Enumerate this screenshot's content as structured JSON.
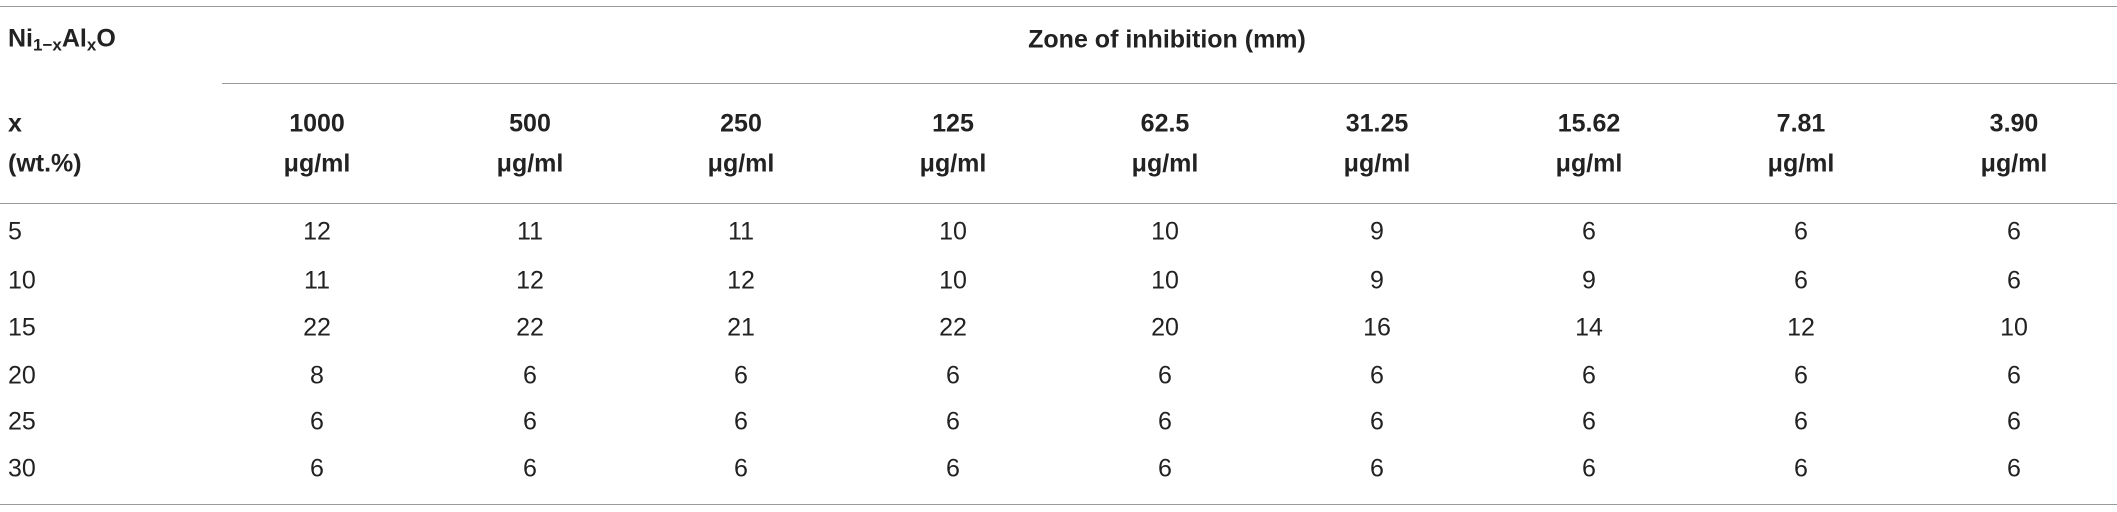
{
  "table": {
    "corner": {
      "compound": [
        "Ni",
        "1−x",
        "Al",
        "x",
        "O"
      ],
      "row_label": [
        "x",
        "(wt.%)"
      ]
    },
    "group_header": "Zone of inhibition (mm)",
    "columns": [
      [
        "1000",
        "μg/ml"
      ],
      [
        "500",
        "μg/ml"
      ],
      [
        "250",
        "μg/ml"
      ],
      [
        "125",
        "μg/ml"
      ],
      [
        "62.5",
        "μg/ml"
      ],
      [
        "31.25",
        "μg/ml"
      ],
      [
        "15.62",
        "μg/ml"
      ],
      [
        "7.81",
        "μg/ml"
      ],
      [
        "3.90",
        "μg/ml"
      ]
    ],
    "rows": [
      [
        "5",
        "12",
        "11",
        "11",
        "10",
        "10",
        "9",
        "6",
        "6",
        "6"
      ],
      [
        "10",
        "11",
        "12",
        "12",
        "10",
        "10",
        "9",
        "9",
        "6",
        "6"
      ],
      [
        "15",
        "22",
        "22",
        "21",
        "22",
        "20",
        "16",
        "14",
        "12",
        "10"
      ],
      [
        "20",
        "8",
        "6",
        "6",
        "6",
        "6",
        "6",
        "6",
        "6",
        "6"
      ],
      [
        "25",
        "6",
        "6",
        "6",
        "6",
        "6",
        "6",
        "6",
        "6",
        "6"
      ],
      [
        "30",
        "6",
        "6",
        "6",
        "6",
        "6",
        "6",
        "6",
        "6",
        "6"
      ]
    ]
  }
}
